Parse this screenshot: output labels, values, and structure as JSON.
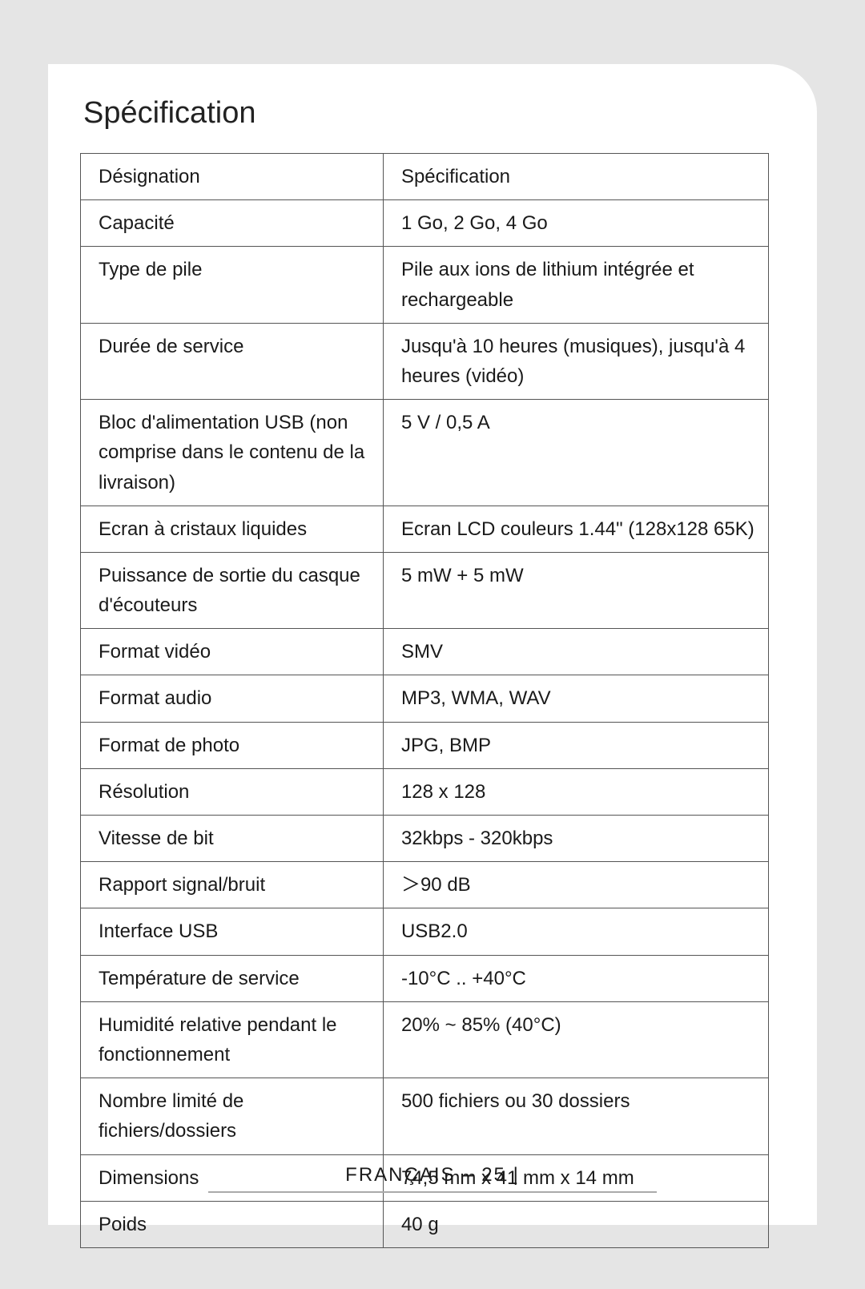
{
  "page": {
    "title": "Spécification",
    "footer": "FRANÇAIS – 25 |",
    "background_color": "#e5e5e5",
    "page_color": "#ffffff",
    "border_color": "#555555",
    "text_color": "#1a1a1a",
    "title_fontsize": 38,
    "cell_fontsize": 24
  },
  "spec_table": {
    "columns": [
      "Désignation",
      "Spécification"
    ],
    "rows": [
      {
        "label": "Désignation",
        "value": "Spécification"
      },
      {
        "label": "Capacité",
        "value": "1 Go, 2 Go, 4 Go"
      },
      {
        "label": "Type de pile",
        "value": "Pile aux ions de lithium intégrée et rechargeable"
      },
      {
        "label": "Durée de service",
        "value": "Jusqu'à 10 heures (musiques), jusqu'à 4 heures (vidéo)"
      },
      {
        "label": "Bloc d'alimentation USB (non comprise dans le contenu de la livraison)",
        "value": "5 V / 0,5 A"
      },
      {
        "label": "Ecran à cristaux liquides",
        "value": "Ecran LCD couleurs 1.44\" (128x128 65K)"
      },
      {
        "label": "Puissance de sortie du casque d'écouteurs",
        "value": "5 mW + 5 mW"
      },
      {
        "label": "Format vidéo",
        "value": "SMV"
      },
      {
        "label": "Format audio",
        "value": "MP3, WMA, WAV"
      },
      {
        "label": "Format de photo",
        "value": "JPG, BMP"
      },
      {
        "label": "Résolution",
        "value": "128 x 128"
      },
      {
        "label": "Vitesse de bit",
        "value": "32kbps - 320kbps"
      },
      {
        "label": "Rapport signal/bruit",
        "value": "＞90 dB"
      },
      {
        "label": "Interface USB",
        "value": "USB2.0"
      },
      {
        "label": "Température de service",
        "value": "-10°C .. +40°C"
      },
      {
        "label": "Humidité relative pendant le fonctionnement",
        "value": "20% ~ 85% (40°C)"
      },
      {
        "label": "Nombre limité de fichiers/dossiers",
        "value": "500 fichiers ou 30 dossiers"
      },
      {
        "label": "Dimensions",
        "value": "74,5 mm x 41 mm x 14 mm"
      },
      {
        "label": "Poids",
        "value": "40 g"
      }
    ]
  }
}
